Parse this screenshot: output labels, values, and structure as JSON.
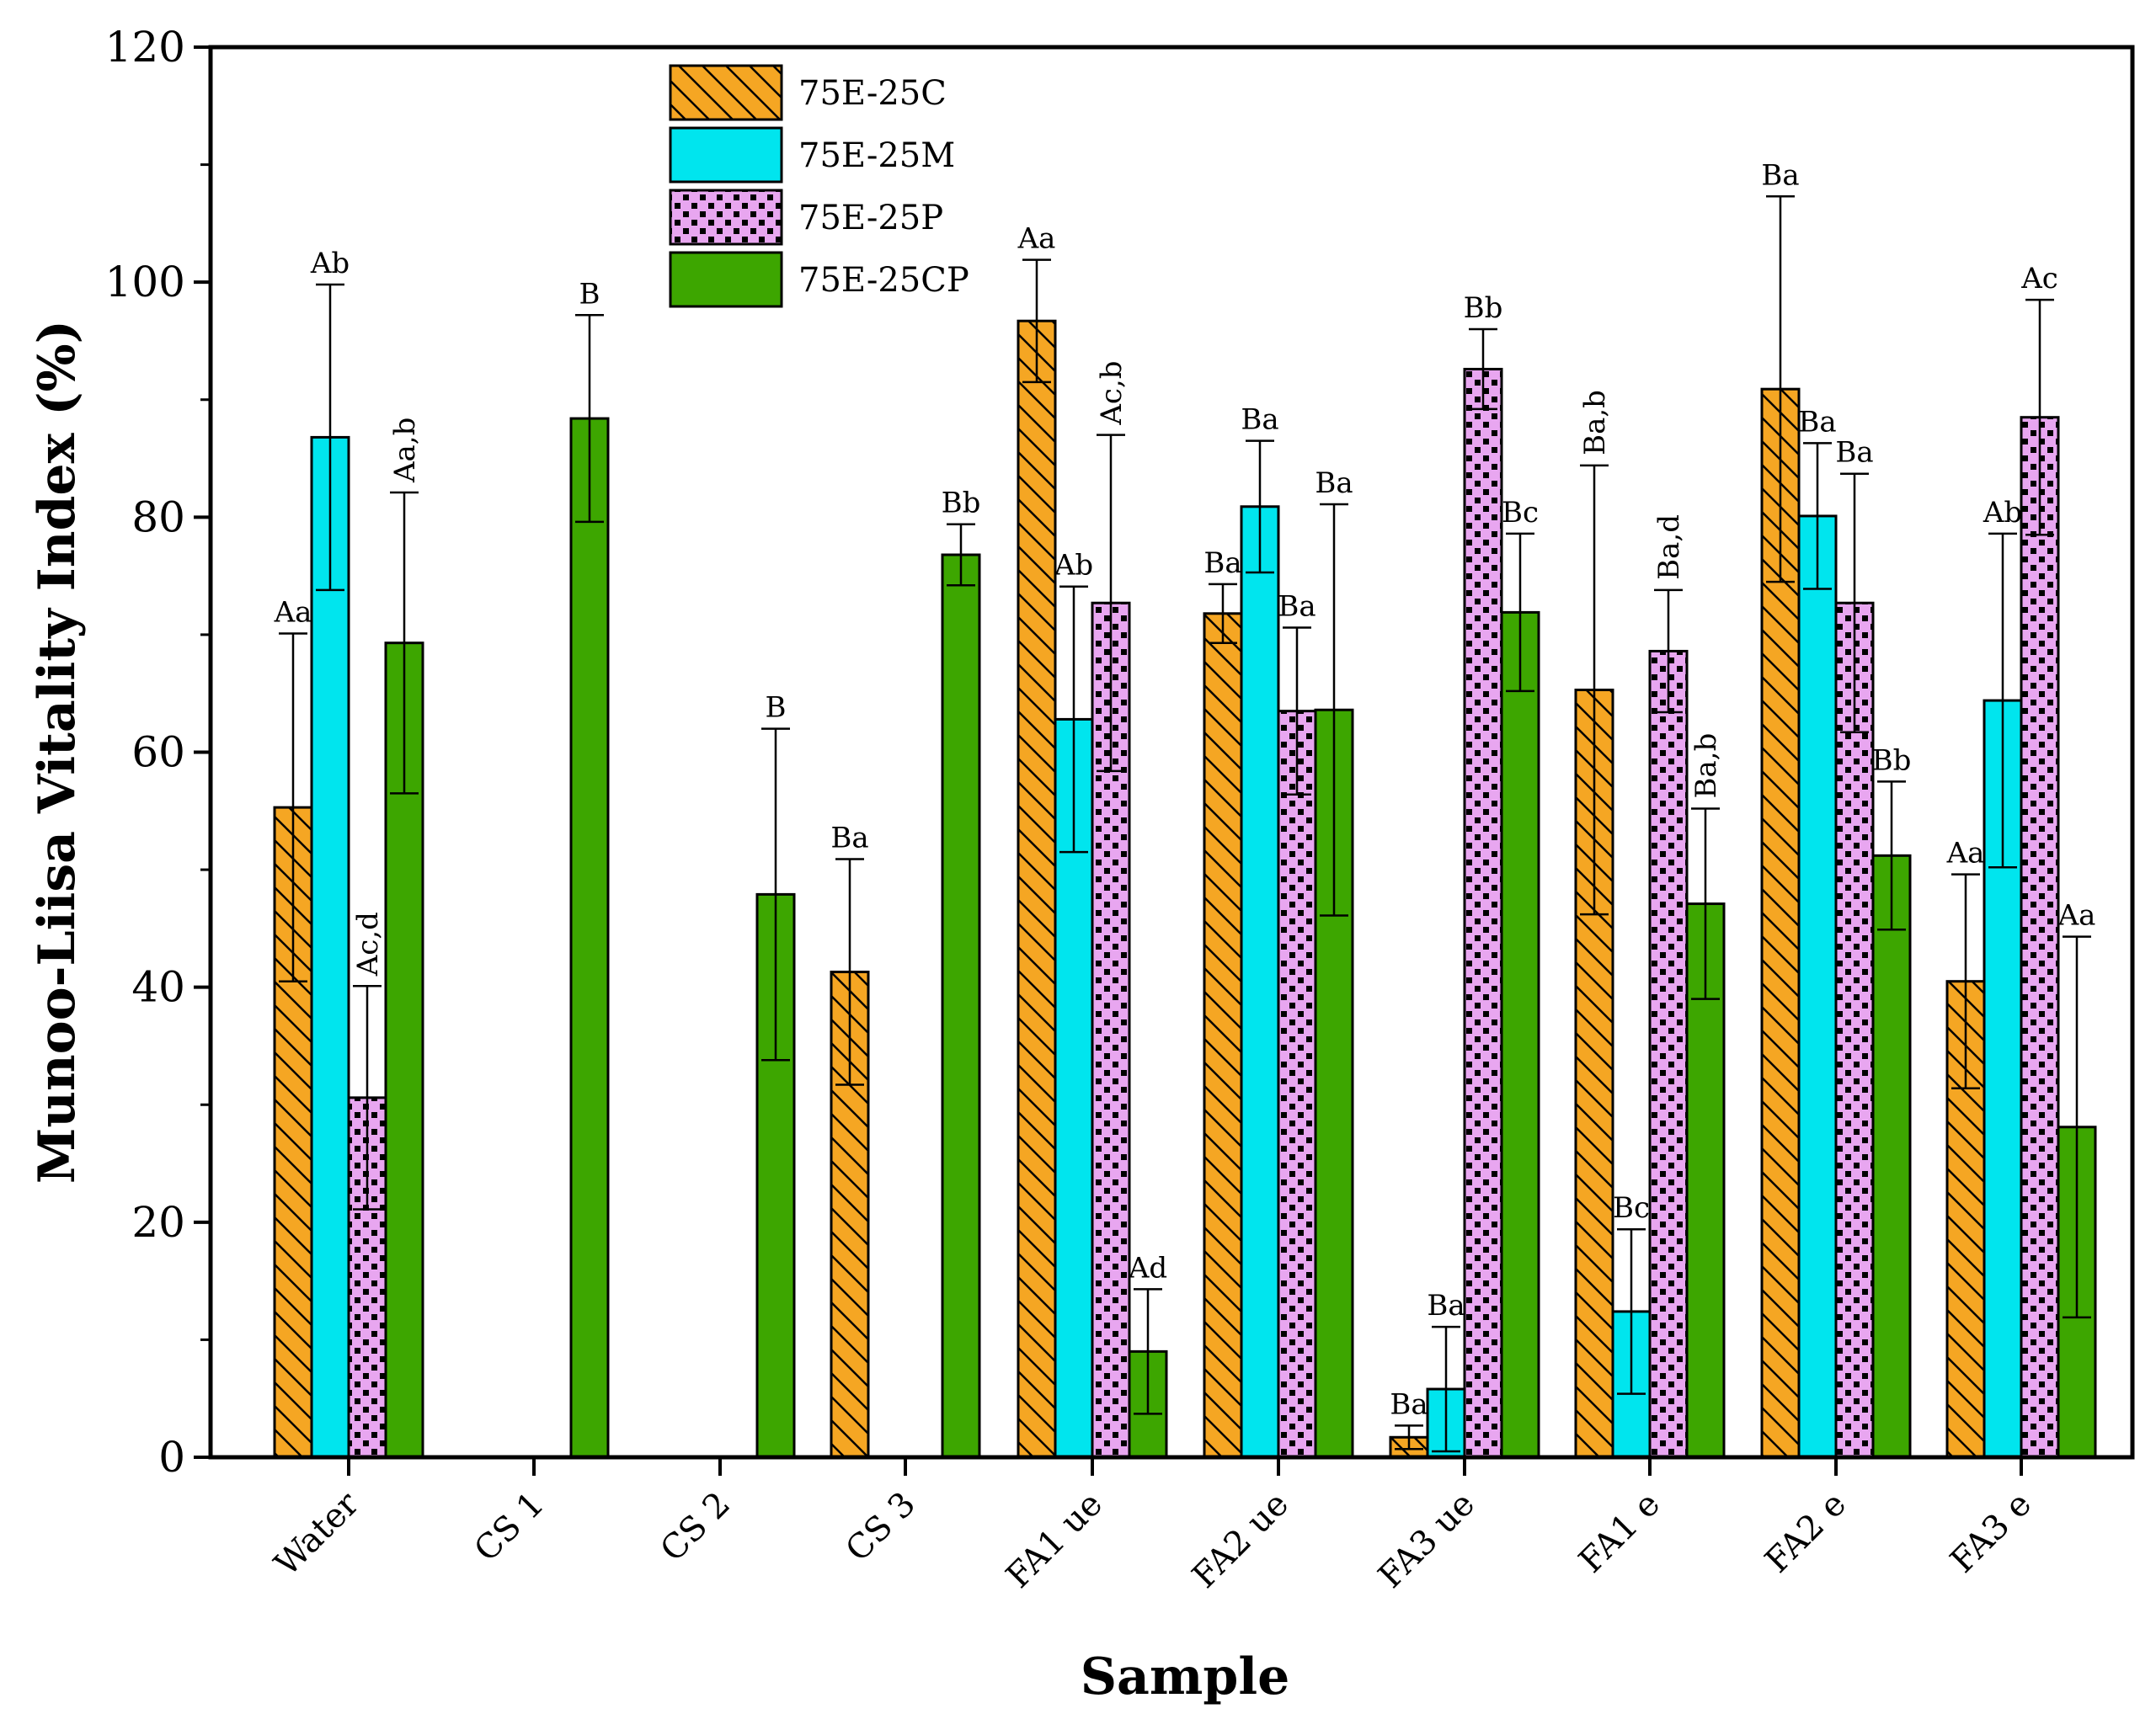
{
  "chart_data": {
    "type": "bar",
    "xlabel": "Sample",
    "ylabel": "Munoo-Liisa Vitality Index (%)",
    "ylim": [
      0,
      120
    ],
    "yticks": [
      "0",
      "20",
      "40",
      "60",
      "80",
      "100",
      "120"
    ],
    "categories": [
      "Water",
      "CS 1",
      "CS 2",
      "CS 3",
      "FA1 ue",
      "FA2 ue",
      "FA3 ue",
      "FA1 e",
      "FA2 e",
      "FA3 e"
    ],
    "legend_position": "top-center",
    "series": [
      {
        "name": "75E-25C",
        "color": "#F5A623",
        "pattern": "diagonal-hatch",
        "values": [
          55.3,
          null,
          null,
          41.3,
          96.7,
          71.8,
          1.7,
          65.3,
          90.9,
          40.5
        ],
        "errors": [
          14.8,
          null,
          null,
          9.6,
          5.2,
          2.5,
          1.0,
          19.1,
          16.4,
          9.1
        ],
        "letters": [
          "Aa",
          "",
          "",
          "Ba",
          "Aa",
          "Ba",
          "Ba",
          "Ba,b",
          "Ba",
          "Aa"
        ]
      },
      {
        "name": "75E-25M",
        "color": "#00E5EE",
        "pattern": "solid",
        "values": [
          86.8,
          null,
          null,
          null,
          62.8,
          80.9,
          5.8,
          12.4,
          80.1,
          64.4
        ],
        "errors": [
          13.0,
          null,
          null,
          null,
          11.3,
          5.6,
          5.3,
          7.0,
          6.2,
          14.2
        ],
        "letters": [
          "Ab",
          "",
          "",
          "",
          "Ab",
          "Ba",
          "Ba",
          "Bc",
          "Ba",
          "Ab"
        ]
      },
      {
        "name": "75E-25P",
        "color": "#E8A6F0",
        "pattern": "dotted",
        "values": [
          30.6,
          null,
          null,
          null,
          72.7,
          63.5,
          92.6,
          68.6,
          72.7,
          88.5
        ],
        "errors": [
          9.5,
          null,
          null,
          null,
          14.3,
          7.1,
          3.4,
          5.2,
          11.0,
          10.0
        ],
        "letters": [
          "Ac,d",
          "",
          "",
          "",
          "Ac,b",
          "Ba",
          "Bb",
          "Ba,d",
          "Ba",
          "Ac"
        ]
      },
      {
        "name": "75E-25CP",
        "color": "#3DA600",
        "pattern": "solid",
        "values": [
          69.3,
          88.4,
          47.9,
          76.8,
          9.0,
          63.6,
          71.9,
          47.1,
          51.2,
          28.1
        ],
        "errors": [
          12.8,
          8.8,
          14.1,
          2.6,
          5.3,
          17.5,
          6.7,
          8.1,
          6.3,
          16.2
        ],
        "letters": [
          "Aa,b",
          "B",
          "B",
          "Bb",
          "Ad",
          "Ba",
          "Bc",
          "Ba,b",
          "Bb",
          "Aa"
        ]
      }
    ]
  }
}
